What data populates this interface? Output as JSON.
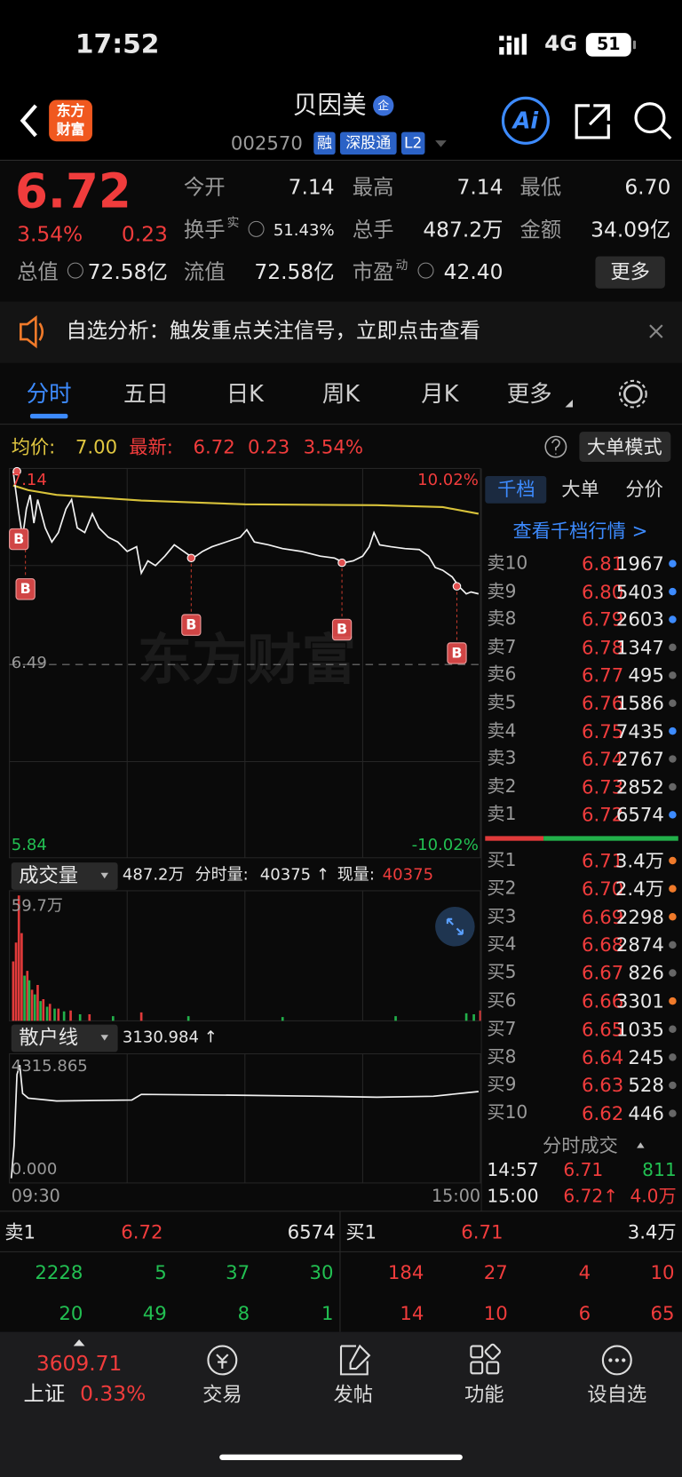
{
  "status_bar": {
    "time": "17:52",
    "network": "4G",
    "battery": "51"
  },
  "header": {
    "logo": [
      "东方",
      "财富"
    ],
    "title": "贝因美",
    "title_badge": "企",
    "code": "002570",
    "tags": [
      "融",
      "深股通",
      "L2"
    ],
    "ai": "Ai"
  },
  "quote": {
    "price": "6.72",
    "change_pct": "3.54%",
    "change": "0.23",
    "stats": [
      {
        "label": "今开",
        "value": "7.14"
      },
      {
        "label": "最高",
        "value": "7.14"
      },
      {
        "label": "最低",
        "value": "6.70"
      },
      {
        "label": "换手",
        "sup": "实",
        "value": "51.43%"
      },
      {
        "label": "总手",
        "value": "487.2万"
      },
      {
        "label": "金额",
        "value": "34.09亿"
      },
      {
        "label": "总值",
        "value": "72.58亿"
      },
      {
        "label": "流值",
        "value": "72.58亿"
      },
      {
        "label": "市盈",
        "sup": "动",
        "value": "42.40"
      }
    ],
    "more": "更多"
  },
  "notice": "自选分析：触发重点关注信号，立即点击查看",
  "tabs": [
    "分时",
    "五日",
    "日K",
    "周K",
    "月K",
    "更多"
  ],
  "intraday": {
    "avg_label": "均价:",
    "avg": "7.00",
    "latest_label": "最新:",
    "latest": "6.72",
    "change": "0.23",
    "change_pct": "3.54%",
    "mode": "大单模式",
    "price_top": "7.14",
    "pct_top": "10.02%",
    "price_mid": "6.49",
    "price_bottom": "5.84",
    "pct_bottom": "-10.02%",
    "watermark": "东方财富",
    "signal": "B"
  },
  "volume": {
    "title": "成交量",
    "total": "487.2万",
    "minute_label": "分时量:",
    "minute": "40375 ↑",
    "now_label": "现量:",
    "now": "40375",
    "max": "59.7万"
  },
  "retail": {
    "title": "散户线",
    "value": "3130.984 ↑",
    "max": "4315.865",
    "min": "0.000",
    "start": "09:30",
    "end": "15:00"
  },
  "depth": {
    "tabs": [
      "千档",
      "大单",
      "分价"
    ],
    "link": "查看千档行情 >",
    "asks": [
      [
        "卖10",
        "6.81",
        "1967"
      ],
      [
        "卖9",
        "6.80",
        "5403"
      ],
      [
        "卖8",
        "6.79",
        "2603"
      ],
      [
        "卖7",
        "6.78",
        "1347"
      ],
      [
        "卖6",
        "6.77",
        "495"
      ],
      [
        "卖5",
        "6.76",
        "1586"
      ],
      [
        "卖4",
        "6.75",
        "7435"
      ],
      [
        "卖3",
        "6.74",
        "2767"
      ],
      [
        "卖2",
        "6.73",
        "2852"
      ],
      [
        "卖1",
        "6.72",
        "6574"
      ]
    ],
    "bids": [
      [
        "买1",
        "6.71",
        "3.4万"
      ],
      [
        "买2",
        "6.70",
        "2.4万"
      ],
      [
        "买3",
        "6.69",
        "2298"
      ],
      [
        "买4",
        "6.68",
        "2874"
      ],
      [
        "买5",
        "6.67",
        "826"
      ],
      [
        "买6",
        "6.66",
        "3301"
      ],
      [
        "买7",
        "6.65",
        "1035"
      ],
      [
        "买8",
        "6.64",
        "245"
      ],
      [
        "买9",
        "6.63",
        "528"
      ],
      [
        "买10",
        "6.62",
        "446"
      ]
    ],
    "trades_title": "分时成交",
    "trades": [
      [
        "14:57",
        "6.71",
        "811"
      ],
      [
        "15:00",
        "6.72↑",
        "4.0万"
      ]
    ]
  },
  "book": {
    "ask": [
      "卖1",
      "6.72",
      "6574"
    ],
    "bid": [
      "买1",
      "6.71",
      "3.4万"
    ],
    "ask_rows": [
      [
        "2228",
        "5",
        "37",
        "30"
      ],
      [
        "20",
        "49",
        "8",
        "1"
      ]
    ],
    "bid_rows": [
      [
        "184",
        "27",
        "4",
        "10"
      ],
      [
        "14",
        "10",
        "6",
        "65"
      ]
    ]
  },
  "nav": {
    "index_value": "3609.71",
    "index_name": "上证",
    "index_change": "0.33%",
    "items": [
      "交易",
      "发帖",
      "功能",
      "设自选"
    ]
  }
}
